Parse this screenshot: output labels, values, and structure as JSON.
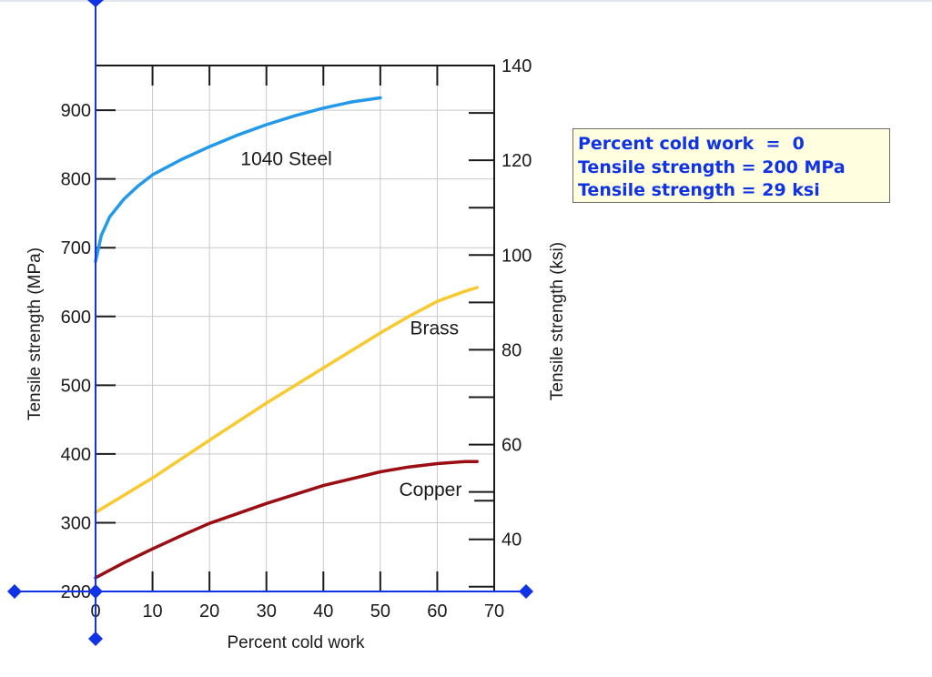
{
  "chart_data": {
    "type": "line",
    "xlabel": "Percent cold work",
    "ylabel": "Tensile strength (MPa)",
    "y2label": "Tensile strength (ksi)",
    "xlim": [
      0,
      70
    ],
    "ylim": [
      200,
      965
    ],
    "y2lim": [
      29,
      140
    ],
    "x_ticks": [
      0,
      10,
      20,
      30,
      40,
      50,
      60,
      70
    ],
    "y_ticks": [
      200,
      300,
      400,
      500,
      600,
      700,
      800,
      900
    ],
    "y2_ticks": [
      40,
      60,
      80,
      100,
      120,
      140
    ],
    "grid": true,
    "series": [
      {
        "name": "1040 Steel",
        "color": "#2399ea",
        "x": [
          0,
          1,
          2.5,
          5,
          7.5,
          10,
          15,
          20,
          25,
          30,
          35,
          40,
          45,
          50
        ],
        "y": [
          680,
          718,
          745,
          771,
          790,
          806,
          828,
          847,
          864,
          879,
          892,
          903,
          912,
          918
        ]
      },
      {
        "name": "Brass",
        "color": "#f9c930",
        "x": [
          0,
          10,
          20,
          30,
          40,
          50,
          55,
          60,
          65,
          67
        ],
        "y": [
          315,
          365,
          420,
          474,
          525,
          576,
          600,
          622,
          637,
          642
        ]
      },
      {
        "name": "Copper",
        "color": "#9a0e13",
        "x": [
          0,
          5,
          10,
          15,
          20,
          30,
          40,
          50,
          55,
          60,
          65,
          67
        ],
        "y": [
          220,
          242,
          262,
          281,
          299,
          328,
          354,
          374,
          381,
          386,
          389,
          389
        ]
      }
    ]
  },
  "readout": {
    "lines": [
      "Percent cold work  =  0",
      "Tensile strength = 200 MPa",
      "Tensile strength = 29 ksi"
    ],
    "color": "#1033e6",
    "background": "#ffffe0"
  },
  "cursor": {
    "x": 0,
    "y": 200,
    "color": "#1033e6"
  }
}
